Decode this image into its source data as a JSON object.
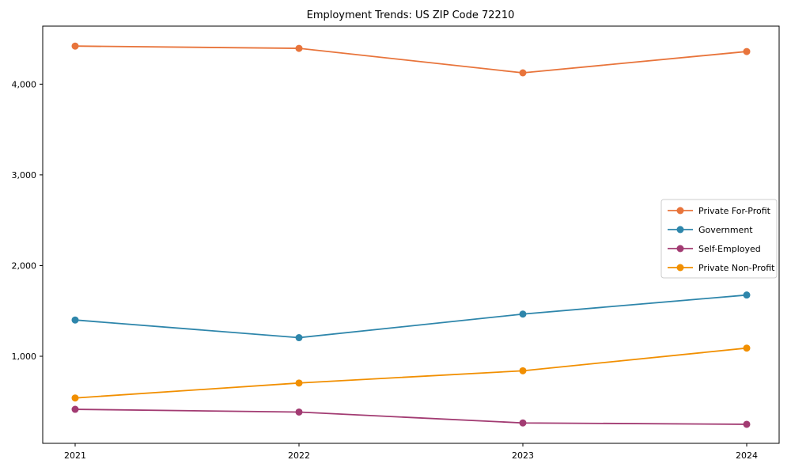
{
  "chart_data": {
    "type": "line",
    "title": "Employment Trends: US ZIP Code 72210",
    "xlabel": "",
    "ylabel": "",
    "x": [
      2021,
      2022,
      2023,
      2024
    ],
    "x_tick_labels": [
      "2021",
      "2022",
      "2023",
      "2024"
    ],
    "y_ticks": [
      1000,
      2000,
      3000,
      4000
    ],
    "y_tick_labels": [
      "1,000",
      "2,000",
      "3,000",
      "4,000"
    ],
    "ylim": [
      40,
      4640
    ],
    "grid": false,
    "legend_position": "center right",
    "marker": "o",
    "series": [
      {
        "name": "Private For-Profit",
        "color": "#E8743B",
        "values": [
          4420,
          4395,
          4125,
          4360
        ]
      },
      {
        "name": "Government",
        "color": "#2E86AB",
        "values": [
          1400,
          1205,
          1465,
          1675
        ]
      },
      {
        "name": "Self-Employed",
        "color": "#A23B72",
        "values": [
          415,
          385,
          265,
          250
        ]
      },
      {
        "name": "Private Non-Profit",
        "color": "#F18F01",
        "values": [
          540,
          705,
          840,
          1090
        ]
      }
    ]
  },
  "colors": {
    "background": "#ffffff",
    "axis": "#000000",
    "tick_label": "#000000",
    "title_text": "#000000",
    "legend_border": "#cccccc",
    "legend_background": "#ffffff"
  }
}
